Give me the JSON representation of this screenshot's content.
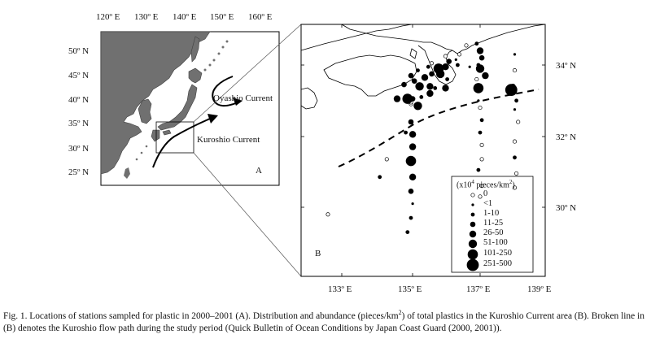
{
  "map_a": {
    "lon_labels": [
      "120º E",
      "130º E",
      "140º E",
      "150º E",
      "160º E"
    ],
    "lat_labels": [
      "50º N",
      "45º N",
      "40º N",
      "35º N",
      "30º N",
      "25º N"
    ],
    "oyashio_label": "Oyashio Current",
    "kuroshio_label": "Kuroshio Current",
    "panel_label": "A"
  },
  "map_b": {
    "lat_labels": [
      "34º N",
      "32º N",
      "30º N"
    ],
    "lon_labels": [
      "133º E",
      "135º E",
      "137º E",
      "139º E"
    ],
    "panel_label": "B",
    "legend": {
      "title_prefix": "(x10",
      "title_exp": "4",
      "title_mid": " pieces/km",
      "title_exp2": "2",
      "title_suffix": ")",
      "items": [
        "0",
        "<1",
        "1-10",
        "11-25",
        "26-50",
        "51-100",
        "101-250",
        "251-500"
      ]
    }
  },
  "caption": {
    "part1": "Fig. 1.  Locations of stations sampled for plastic in 2000–2001 (A). Distribution and abundance (pieces/km",
    "sup": "2",
    "part2": ") of total plastics in the Kuroshio Current area (B). Broken line in (B) denotes the Kuroshio flow path during the study period (Quick Bulletin of Ocean Conditions by Japan Coast Guard (2000, 2001))."
  },
  "stations": [
    {
      "lon": 136.6,
      "lat": 34.55,
      "cls": 0
    },
    {
      "lon": 136.9,
      "lat": 34.6,
      "cls": 2
    },
    {
      "lon": 137.0,
      "lat": 34.4,
      "cls": 4
    },
    {
      "lon": 137.05,
      "lat": 34.2,
      "cls": 3
    },
    {
      "lon": 136.95,
      "lat": 34.0,
      "cls": 2
    },
    {
      "lon": 136.7,
      "lat": 33.95,
      "cls": 1
    },
    {
      "lon": 137.0,
      "lat": 33.9,
      "cls": 5
    },
    {
      "lon": 137.15,
      "lat": 33.7,
      "cls": 4
    },
    {
      "lon": 136.9,
      "lat": 33.6,
      "cls": 0
    },
    {
      "lon": 136.95,
      "lat": 33.35,
      "cls": 6
    },
    {
      "lon": 136.4,
      "lat": 34.3,
      "cls": 0
    },
    {
      "lon": 136.3,
      "lat": 34.15,
      "cls": 1
    },
    {
      "lon": 136.35,
      "lat": 34.0,
      "cls": 2
    },
    {
      "lon": 136.0,
      "lat": 34.25,
      "cls": 0
    },
    {
      "lon": 136.1,
      "lat": 34.1,
      "cls": 3
    },
    {
      "lon": 136.0,
      "lat": 33.95,
      "cls": 4
    },
    {
      "lon": 135.8,
      "lat": 33.9,
      "cls": 6
    },
    {
      "lon": 135.6,
      "lat": 33.75,
      "cls": 3
    },
    {
      "lon": 135.85,
      "lat": 33.75,
      "cls": 5
    },
    {
      "lon": 135.5,
      "lat": 33.95,
      "cls": 2
    },
    {
      "lon": 135.6,
      "lat": 34.05,
      "cls": 0
    },
    {
      "lon": 135.2,
      "lat": 33.85,
      "cls": 2
    },
    {
      "lon": 135.0,
      "lat": 33.7,
      "cls": 3
    },
    {
      "lon": 135.4,
      "lat": 33.65,
      "cls": 4
    },
    {
      "lon": 135.1,
      "lat": 33.55,
      "cls": 3
    },
    {
      "lon": 134.8,
      "lat": 33.45,
      "cls": 3
    },
    {
      "lon": 135.25,
      "lat": 33.4,
      "cls": 5
    },
    {
      "lon": 135.55,
      "lat": 33.4,
      "cls": 4
    },
    {
      "lon": 135.55,
      "lat": 33.2,
      "cls": 4
    },
    {
      "lon": 135.3,
      "lat": 33.1,
      "cls": 2
    },
    {
      "lon": 135.05,
      "lat": 33.05,
      "cls": 3
    },
    {
      "lon": 135.0,
      "lat": 32.9,
      "cls": 0
    },
    {
      "lon": 135.0,
      "lat": 32.95,
      "cls": 0
    },
    {
      "lon": 134.9,
      "lat": 33.05,
      "cls": 6
    },
    {
      "lon": 134.6,
      "lat": 33.05,
      "cls": 4
    },
    {
      "lon": 135.7,
      "lat": 33.35,
      "cls": 2
    },
    {
      "lon": 136.0,
      "lat": 33.35,
      "cls": 4
    },
    {
      "lon": 136.05,
      "lat": 33.6,
      "cls": 2
    },
    {
      "lon": 136.95,
      "lat": 33.0,
      "cls": 1
    },
    {
      "lon": 137.0,
      "lat": 32.8,
      "cls": 0
    },
    {
      "lon": 137.05,
      "lat": 32.45,
      "cls": 2
    },
    {
      "lon": 137.0,
      "lat": 32.1,
      "cls": 2
    },
    {
      "lon": 137.05,
      "lat": 31.75,
      "cls": 0
    },
    {
      "lon": 137.05,
      "lat": 31.35,
      "cls": 0
    },
    {
      "lon": 136.95,
      "lat": 31.05,
      "cls": 2
    },
    {
      "lon": 137.05,
      "lat": 30.6,
      "cls": 0
    },
    {
      "lon": 137.0,
      "lat": 30.3,
      "cls": 0
    },
    {
      "lon": 138.0,
      "lat": 34.3,
      "cls": 1
    },
    {
      "lon": 138.0,
      "lat": 33.85,
      "cls": 0
    },
    {
      "lon": 137.95,
      "lat": 33.4,
      "cls": 3
    },
    {
      "lon": 137.9,
      "lat": 33.3,
      "cls": 7
    },
    {
      "lon": 138.05,
      "lat": 33.0,
      "cls": 2
    },
    {
      "lon": 138.0,
      "lat": 32.75,
      "cls": 1
    },
    {
      "lon": 138.1,
      "lat": 32.4,
      "cls": 0
    },
    {
      "lon": 138.0,
      "lat": 31.85,
      "cls": 0
    },
    {
      "lon": 138.0,
      "lat": 31.4,
      "cls": 2
    },
    {
      "lon": 138.05,
      "lat": 30.95,
      "cls": 0
    },
    {
      "lon": 138.0,
      "lat": 30.55,
      "cls": 0
    },
    {
      "lon": 135.2,
      "lat": 32.85,
      "cls": 5
    },
    {
      "lon": 135.0,
      "lat": 32.4,
      "cls": 3
    },
    {
      "lon": 134.85,
      "lat": 32.1,
      "cls": 2
    },
    {
      "lon": 135.05,
      "lat": 32.05,
      "cls": 4
    },
    {
      "lon": 135.05,
      "lat": 31.7,
      "cls": 4
    },
    {
      "lon": 134.3,
      "lat": 31.35,
      "cls": 0
    },
    {
      "lon": 135.0,
      "lat": 31.3,
      "cls": 6
    },
    {
      "lon": 135.05,
      "lat": 30.85,
      "cls": 4
    },
    {
      "lon": 134.1,
      "lat": 30.85,
      "cls": 2
    },
    {
      "lon": 135.0,
      "lat": 30.45,
      "cls": 3
    },
    {
      "lon": 135.05,
      "lat": 30.1,
      "cls": 1
    },
    {
      "lon": 135.0,
      "lat": 29.7,
      "cls": 2
    },
    {
      "lon": 132.6,
      "lat": 29.8,
      "cls": 0
    },
    {
      "lon": 134.9,
      "lat": 29.3,
      "cls": 2
    }
  ]
}
